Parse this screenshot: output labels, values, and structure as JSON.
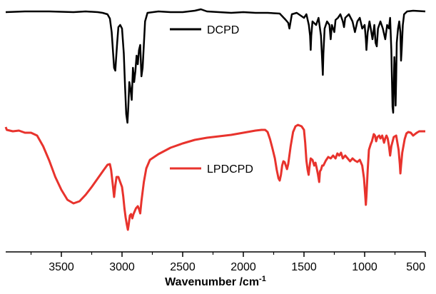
{
  "chart_data": {
    "type": "line",
    "title": "",
    "xlabel": "Wavenumber /cm",
    "xlabel_superscript": "-1",
    "ylabel": "",
    "xlim": [
      4000,
      500
    ],
    "x_reversed": true,
    "xticks": [
      3500,
      3000,
      2500,
      2000,
      1500,
      1000,
      500
    ],
    "grid": false,
    "legend_placement": "per-curve labels near 2000 cm-1",
    "series": [
      {
        "name": "DCPD",
        "color": "#000000",
        "points": [
          [
            4000,
            17
          ],
          [
            3800,
            16
          ],
          [
            3600,
            16
          ],
          [
            3400,
            17
          ],
          [
            3300,
            16
          ],
          [
            3200,
            17
          ],
          [
            3160,
            18
          ],
          [
            3120,
            20
          ],
          [
            3100,
            26
          ],
          [
            3085,
            45
          ],
          [
            3075,
            70
          ],
          [
            3065,
            95
          ],
          [
            3055,
            99
          ],
          [
            3050,
            85
          ],
          [
            3040,
            60
          ],
          [
            3030,
            38
          ],
          [
            3015,
            35
          ],
          [
            3000,
            40
          ],
          [
            2985,
            75
          ],
          [
            2975,
            120
          ],
          [
            2965,
            160
          ],
          [
            2955,
            172
          ],
          [
            2948,
            150
          ],
          [
            2940,
            115
          ],
          [
            2930,
            125
          ],
          [
            2920,
            140
          ],
          [
            2910,
            95
          ],
          [
            2900,
            115
          ],
          [
            2890,
            100
          ],
          [
            2880,
            78
          ],
          [
            2870,
            90
          ],
          [
            2860,
            70
          ],
          [
            2850,
            63
          ],
          [
            2840,
            107
          ],
          [
            2830,
            95
          ],
          [
            2810,
            30
          ],
          [
            2790,
            18
          ],
          [
            2700,
            16
          ],
          [
            2600,
            17
          ],
          [
            2500,
            17
          ],
          [
            2400,
            15
          ],
          [
            2350,
            13
          ],
          [
            2300,
            16
          ],
          [
            2200,
            17
          ],
          [
            2100,
            18
          ],
          [
            2000,
            17
          ],
          [
            1900,
            18
          ],
          [
            1800,
            18
          ],
          [
            1700,
            19
          ],
          [
            1650,
            28
          ],
          [
            1630,
            32
          ],
          [
            1620,
            40
          ],
          [
            1610,
            30
          ],
          [
            1600,
            20
          ],
          [
            1560,
            18
          ],
          [
            1500,
            25
          ],
          [
            1480,
            20
          ],
          [
            1460,
            35
          ],
          [
            1450,
            50
          ],
          [
            1445,
            70
          ],
          [
            1440,
            50
          ],
          [
            1430,
            30
          ],
          [
            1400,
            35
          ],
          [
            1380,
            25
          ],
          [
            1360,
            50
          ],
          [
            1350,
            85
          ],
          [
            1345,
            105
          ],
          [
            1340,
            75
          ],
          [
            1330,
            40
          ],
          [
            1310,
            30
          ],
          [
            1290,
            35
          ],
          [
            1280,
            55
          ],
          [
            1270,
            35
          ],
          [
            1250,
            45
          ],
          [
            1240,
            28
          ],
          [
            1220,
            25
          ],
          [
            1200,
            20
          ],
          [
            1180,
            30
          ],
          [
            1170,
            38
          ],
          [
            1160,
            25
          ],
          [
            1130,
            20
          ],
          [
            1100,
            30
          ],
          [
            1080,
            45
          ],
          [
            1060,
            30
          ],
          [
            1040,
            25
          ],
          [
            1020,
            40
          ],
          [
            1000,
            35
          ],
          [
            990,
            55
          ],
          [
            985,
            70
          ],
          [
            975,
            45
          ],
          [
            960,
            30
          ],
          [
            945,
            45
          ],
          [
            935,
            55
          ],
          [
            920,
            35
          ],
          [
            910,
            60
          ],
          [
            900,
            65
          ],
          [
            890,
            40
          ],
          [
            870,
            30
          ],
          [
            850,
            40
          ],
          [
            830,
            55
          ],
          [
            815,
            35
          ],
          [
            800,
            40
          ],
          [
            790,
            25
          ],
          [
            780,
            70
          ],
          [
            770,
            150
          ],
          [
            765,
            158
          ],
          [
            760,
            120
          ],
          [
            755,
            80
          ],
          [
            750,
            100
          ],
          [
            745,
            148
          ],
          [
            740,
            110
          ],
          [
            735,
            60
          ],
          [
            725,
            40
          ],
          [
            715,
            30
          ],
          [
            705,
            45
          ],
          [
            700,
            85
          ],
          [
            695,
            70
          ],
          [
            685,
            35
          ],
          [
            675,
            20
          ],
          [
            650,
            16
          ],
          [
            600,
            15
          ],
          [
            500,
            16
          ]
        ]
      },
      {
        "name": "LPDCPD",
        "color": "#e8332d",
        "points": [
          [
            4000,
            178
          ],
          [
            3950,
            182
          ],
          [
            3900,
            184
          ],
          [
            3850,
            183
          ],
          [
            3800,
            186
          ],
          [
            3750,
            186
          ],
          [
            3700,
            190
          ],
          [
            3650,
            205
          ],
          [
            3600,
            225
          ],
          [
            3550,
            248
          ],
          [
            3500,
            266
          ],
          [
            3450,
            280
          ],
          [
            3400,
            285
          ],
          [
            3350,
            282
          ],
          [
            3300,
            273
          ],
          [
            3250,
            262
          ],
          [
            3200,
            250
          ],
          [
            3150,
            238
          ],
          [
            3120,
            231
          ],
          [
            3100,
            230
          ],
          [
            3090,
            238
          ],
          [
            3075,
            260
          ],
          [
            3065,
            276
          ],
          [
            3055,
            260
          ],
          [
            3045,
            248
          ],
          [
            3030,
            248
          ],
          [
            3015,
            255
          ],
          [
            3000,
            262
          ],
          [
            2990,
            275
          ],
          [
            2980,
            292
          ],
          [
            2970,
            305
          ],
          [
            2960,
            315
          ],
          [
            2952,
            322
          ],
          [
            2945,
            315
          ],
          [
            2935,
            302
          ],
          [
            2925,
            300
          ],
          [
            2915,
            306
          ],
          [
            2905,
            300
          ],
          [
            2895,
            296
          ],
          [
            2885,
            292
          ],
          [
            2870,
            289
          ],
          [
            2860,
            293
          ],
          [
            2850,
            299
          ],
          [
            2840,
            282
          ],
          [
            2820,
            255
          ],
          [
            2800,
            236
          ],
          [
            2770,
            224
          ],
          [
            2700,
            216
          ],
          [
            2600,
            207
          ],
          [
            2500,
            201
          ],
          [
            2400,
            196
          ],
          [
            2300,
            193
          ],
          [
            2200,
            191
          ],
          [
            2100,
            189
          ],
          [
            2000,
            186
          ],
          [
            1900,
            183
          ],
          [
            1850,
            182
          ],
          [
            1820,
            182
          ],
          [
            1800,
            185
          ],
          [
            1780,
            195
          ],
          [
            1760,
            208
          ],
          [
            1740,
            222
          ],
          [
            1725,
            238
          ],
          [
            1710,
            250
          ],
          [
            1700,
            253
          ],
          [
            1690,
            245
          ],
          [
            1680,
            232
          ],
          [
            1670,
            226
          ],
          [
            1660,
            227
          ],
          [
            1650,
            232
          ],
          [
            1640,
            237
          ],
          [
            1630,
            230
          ],
          [
            1610,
            205
          ],
          [
            1590,
            185
          ],
          [
            1570,
            177
          ],
          [
            1550,
            175
          ],
          [
            1520,
            177
          ],
          [
            1500,
            182
          ],
          [
            1490,
            200
          ],
          [
            1480,
            225
          ],
          [
            1470,
            238
          ],
          [
            1462,
            245
          ],
          [
            1455,
            235
          ],
          [
            1445,
            222
          ],
          [
            1430,
            224
          ],
          [
            1415,
            232
          ],
          [
            1405,
            228
          ],
          [
            1395,
            236
          ],
          [
            1385,
            244
          ],
          [
            1375,
            255
          ],
          [
            1368,
            240
          ],
          [
            1360,
            238
          ],
          [
            1350,
            232
          ],
          [
            1340,
            232
          ],
          [
            1320,
            225
          ],
          [
            1300,
            220
          ],
          [
            1280,
            222
          ],
          [
            1260,
            218
          ],
          [
            1240,
            222
          ],
          [
            1225,
            215
          ],
          [
            1210,
            218
          ],
          [
            1195,
            214
          ],
          [
            1180,
            222
          ],
          [
            1160,
            218
          ],
          [
            1140,
            222
          ],
          [
            1120,
            226
          ],
          [
            1100,
            222
          ],
          [
            1080,
            225
          ],
          [
            1060,
            227
          ],
          [
            1040,
            224
          ],
          [
            1020,
            232
          ],
          [
            1005,
            250
          ],
          [
            995,
            275
          ],
          [
            990,
            287
          ],
          [
            985,
            275
          ],
          [
            975,
            238
          ],
          [
            965,
            210
          ],
          [
            950,
            202
          ],
          [
            940,
            198
          ],
          [
            925,
            188
          ],
          [
            915,
            190
          ],
          [
            905,
            198
          ],
          [
            895,
            192
          ],
          [
            880,
            190
          ],
          [
            870,
            194
          ],
          [
            855,
            190
          ],
          [
            840,
            200
          ],
          [
            830,
            194
          ],
          [
            820,
            190
          ],
          [
            810,
            194
          ],
          [
            800,
            204
          ],
          [
            790,
            218
          ],
          [
            780,
            205
          ],
          [
            760,
            192
          ],
          [
            740,
            190
          ],
          [
            720,
            210
          ],
          [
            710,
            230
          ],
          [
            705,
            243
          ],
          [
            700,
            232
          ],
          [
            690,
            214
          ],
          [
            670,
            195
          ],
          [
            655,
            187
          ],
          [
            640,
            185
          ],
          [
            620,
            186
          ],
          [
            600,
            190
          ],
          [
            585,
            188
          ],
          [
            570,
            186
          ],
          [
            550,
            184
          ],
          [
            500,
            184
          ]
        ]
      }
    ]
  }
}
